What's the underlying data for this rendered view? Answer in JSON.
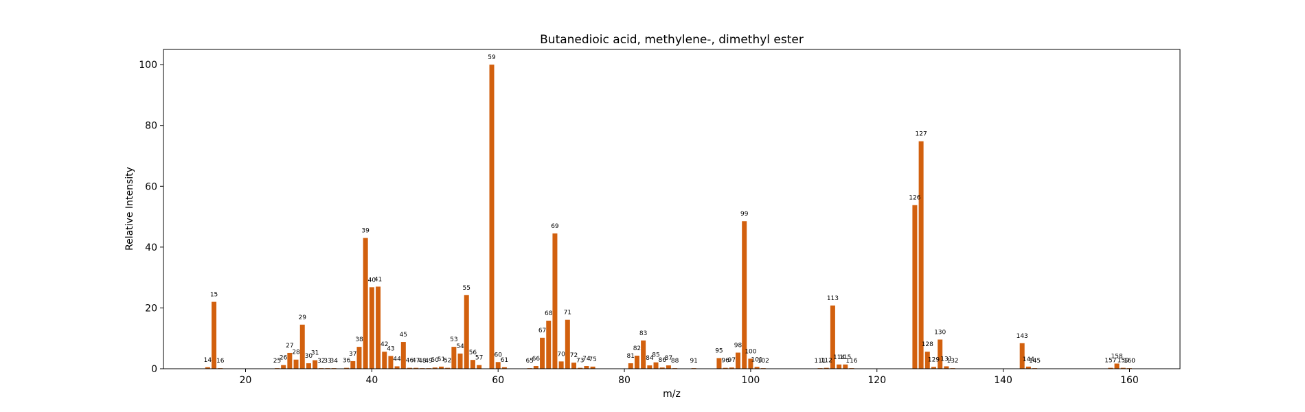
{
  "chart_data": {
    "type": "bar",
    "title": "Butanedioic acid, methylene-, dimethyl ester",
    "xlabel": "m/z",
    "ylabel": "Relative Intensity",
    "xlim": [
      7,
      168
    ],
    "ylim": [
      0,
      105
    ],
    "xticks": [
      20,
      40,
      60,
      80,
      100,
      120,
      140,
      160
    ],
    "yticks": [
      0,
      20,
      40,
      60,
      80,
      100
    ],
    "grid": false,
    "bar_color": "#d2600e",
    "points": [
      {
        "x": 14,
        "y": 0.5
      },
      {
        "x": 15,
        "y": 22.0
      },
      {
        "x": 16,
        "y": 0.2
      },
      {
        "x": 25,
        "y": 0.2
      },
      {
        "x": 26,
        "y": 1.2
      },
      {
        "x": 27,
        "y": 5.2
      },
      {
        "x": 28,
        "y": 3.0
      },
      {
        "x": 29,
        "y": 14.5
      },
      {
        "x": 30,
        "y": 1.8
      },
      {
        "x": 31,
        "y": 2.8
      },
      {
        "x": 32,
        "y": 0.2
      },
      {
        "x": 33,
        "y": 0.2
      },
      {
        "x": 34,
        "y": 0.2
      },
      {
        "x": 36,
        "y": 0.3
      },
      {
        "x": 37,
        "y": 2.5
      },
      {
        "x": 38,
        "y": 7.2
      },
      {
        "x": 39,
        "y": 43.0
      },
      {
        "x": 40,
        "y": 26.8
      },
      {
        "x": 41,
        "y": 27.0
      },
      {
        "x": 42,
        "y": 5.6
      },
      {
        "x": 43,
        "y": 4.2
      },
      {
        "x": 44,
        "y": 0.8
      },
      {
        "x": 45,
        "y": 8.8
      },
      {
        "x": 46,
        "y": 0.3
      },
      {
        "x": 47,
        "y": 0.3
      },
      {
        "x": 48,
        "y": 0.2
      },
      {
        "x": 49,
        "y": 0.2
      },
      {
        "x": 50,
        "y": 0.4
      },
      {
        "x": 51,
        "y": 0.7
      },
      {
        "x": 52,
        "y": 0.3
      },
      {
        "x": 53,
        "y": 7.2
      },
      {
        "x": 54,
        "y": 5.0
      },
      {
        "x": 55,
        "y": 24.2
      },
      {
        "x": 56,
        "y": 2.9
      },
      {
        "x": 57,
        "y": 1.2
      },
      {
        "x": 59,
        "y": 100.0
      },
      {
        "x": 60,
        "y": 2.2
      },
      {
        "x": 61,
        "y": 0.5
      },
      {
        "x": 65,
        "y": 0.2
      },
      {
        "x": 66,
        "y": 0.9
      },
      {
        "x": 67,
        "y": 10.2
      },
      {
        "x": 68,
        "y": 15.8
      },
      {
        "x": 69,
        "y": 44.5
      },
      {
        "x": 70,
        "y": 2.4
      },
      {
        "x": 71,
        "y": 16.1
      },
      {
        "x": 72,
        "y": 2.0
      },
      {
        "x": 73,
        "y": 0.3
      },
      {
        "x": 74,
        "y": 0.9
      },
      {
        "x": 75,
        "y": 0.7
      },
      {
        "x": 81,
        "y": 1.8
      },
      {
        "x": 82,
        "y": 4.3
      },
      {
        "x": 83,
        "y": 9.3
      },
      {
        "x": 84,
        "y": 1.1
      },
      {
        "x": 85,
        "y": 2.1
      },
      {
        "x": 86,
        "y": 0.4
      },
      {
        "x": 87,
        "y": 1.1
      },
      {
        "x": 88,
        "y": 0.2
      },
      {
        "x": 91,
        "y": 0.2
      },
      {
        "x": 95,
        "y": 3.5
      },
      {
        "x": 96,
        "y": 0.3
      },
      {
        "x": 97,
        "y": 0.4
      },
      {
        "x": 98,
        "y": 5.3
      },
      {
        "x": 99,
        "y": 48.5
      },
      {
        "x": 100,
        "y": 3.3
      },
      {
        "x": 101,
        "y": 0.6
      },
      {
        "x": 102,
        "y": 0.2
      },
      {
        "x": 111,
        "y": 0.2
      },
      {
        "x": 112,
        "y": 0.3
      },
      {
        "x": 113,
        "y": 20.8
      },
      {
        "x": 114,
        "y": 1.4
      },
      {
        "x": 115,
        "y": 1.4
      },
      {
        "x": 116,
        "y": 0.2
      },
      {
        "x": 126,
        "y": 53.8
      },
      {
        "x": 127,
        "y": 74.8
      },
      {
        "x": 128,
        "y": 5.6
      },
      {
        "x": 129,
        "y": 0.6
      },
      {
        "x": 130,
        "y": 9.6
      },
      {
        "x": 131,
        "y": 0.8
      },
      {
        "x": 132,
        "y": 0.2
      },
      {
        "x": 143,
        "y": 8.4
      },
      {
        "x": 144,
        "y": 0.7
      },
      {
        "x": 145,
        "y": 0.2
      },
      {
        "x": 157,
        "y": 0.3
      },
      {
        "x": 158,
        "y": 1.7
      },
      {
        "x": 159,
        "y": 0.3
      },
      {
        "x": 160,
        "y": 0.2
      }
    ]
  }
}
